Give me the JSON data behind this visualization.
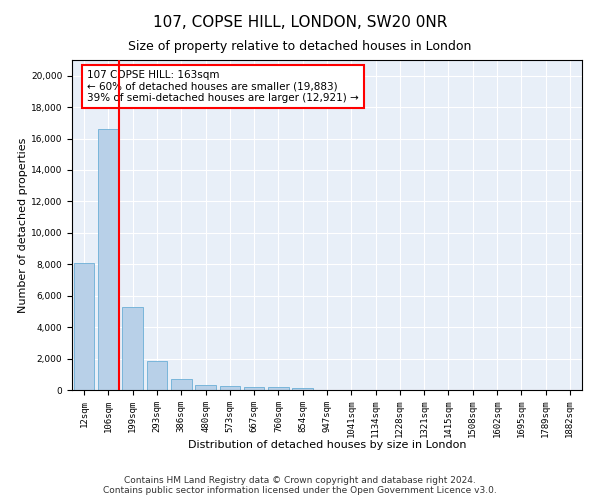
{
  "title": "107, COPSE HILL, LONDON, SW20 0NR",
  "subtitle": "Size of property relative to detached houses in London",
  "xlabel": "Distribution of detached houses by size in London",
  "ylabel": "Number of detached properties",
  "categories": [
    "12sqm",
    "106sqm",
    "199sqm",
    "293sqm",
    "386sqm",
    "480sqm",
    "573sqm",
    "667sqm",
    "760sqm",
    "854sqm",
    "947sqm",
    "1041sqm",
    "1134sqm",
    "1228sqm",
    "1321sqm",
    "1415sqm",
    "1508sqm",
    "1602sqm",
    "1695sqm",
    "1789sqm",
    "1882sqm"
  ],
  "bar_heights": [
    8100,
    16600,
    5300,
    1850,
    680,
    350,
    280,
    200,
    180,
    100,
    0,
    0,
    0,
    0,
    0,
    0,
    0,
    0,
    0,
    0,
    0
  ],
  "bar_color": "#b8d0e8",
  "bar_edge_color": "#6baed6",
  "vline_color": "red",
  "annotation_text": "107 COPSE HILL: 163sqm\n← 60% of detached houses are smaller (19,883)\n39% of semi-detached houses are larger (12,921) →",
  "annotation_box_color": "white",
  "annotation_box_edge": "red",
  "ylim": [
    0,
    21000
  ],
  "yticks": [
    0,
    2000,
    4000,
    6000,
    8000,
    10000,
    12000,
    14000,
    16000,
    18000,
    20000
  ],
  "plot_bg_color": "#e8eff8",
  "footer_line1": "Contains HM Land Registry data © Crown copyright and database right 2024.",
  "footer_line2": "Contains public sector information licensed under the Open Government Licence v3.0.",
  "title_fontsize": 11,
  "subtitle_fontsize": 9,
  "axis_label_fontsize": 8,
  "tick_fontsize": 6.5,
  "annotation_fontsize": 7.5,
  "footer_fontsize": 6.5
}
